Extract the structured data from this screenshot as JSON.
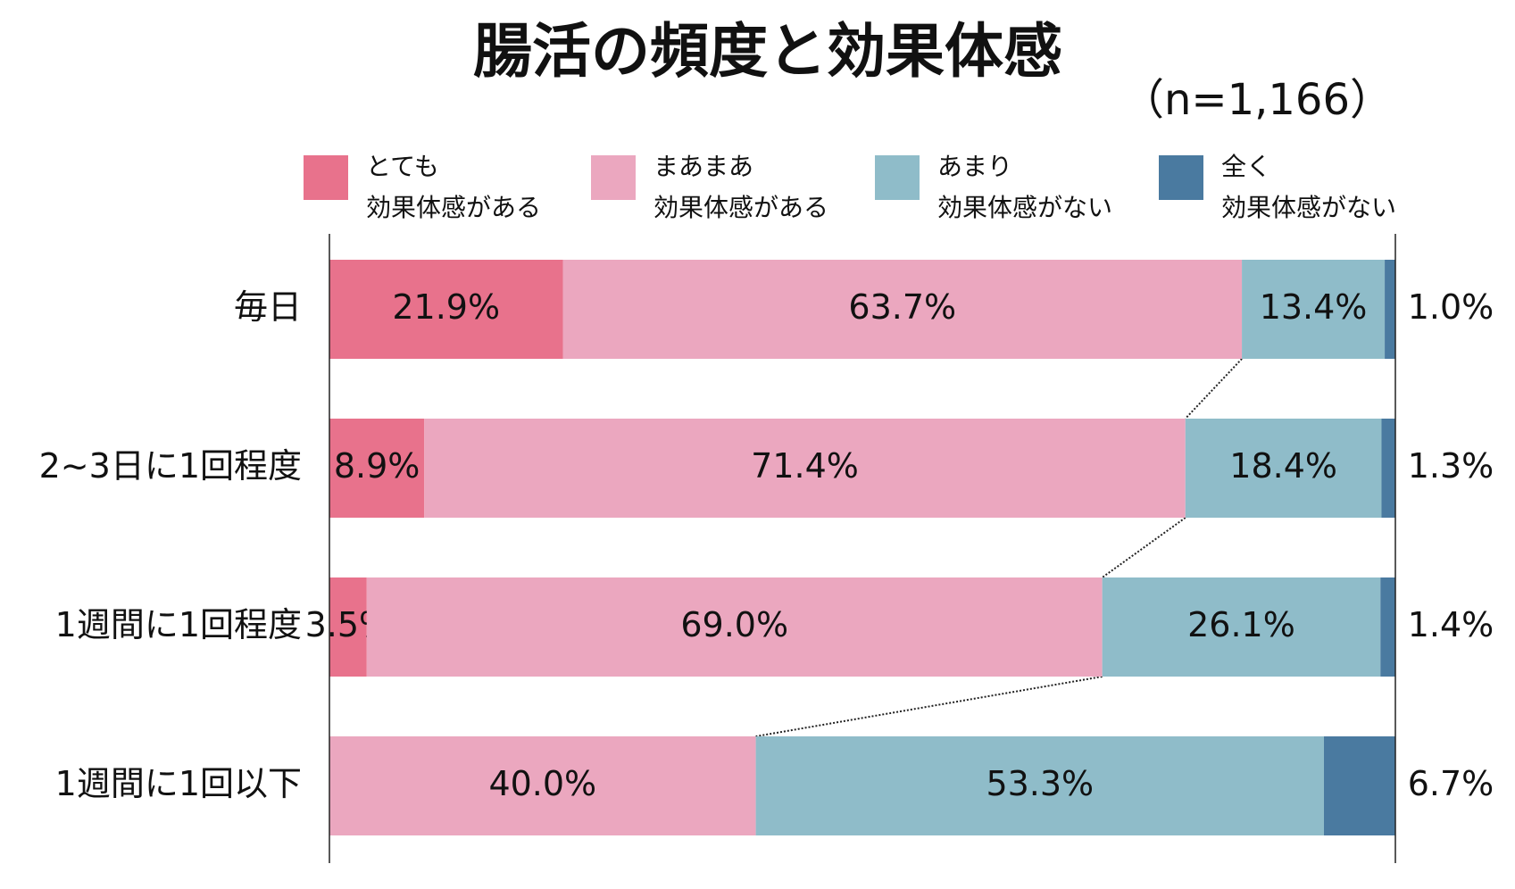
{
  "chart_data": {
    "type": "bar",
    "orientation": "horizontal",
    "stacked": true,
    "percent_stacked": true,
    "title": "腸活の頻度と効果体感",
    "subtitle": "（n=1,166）",
    "categories": [
      "毎日",
      "2~3日に1回程度",
      "1週間に1回程度",
      "1週間に1回以下"
    ],
    "series": [
      {
        "name": "とても効果体感がある",
        "legend_lines": [
          "とても",
          "効果体感がある"
        ],
        "color": "#E8728C",
        "values": [
          21.9,
          8.9,
          3.5,
          0
        ],
        "labels": [
          "21.9%",
          "8.9%",
          "3.5%",
          ""
        ]
      },
      {
        "name": "まあまあ効果体感がある",
        "legend_lines": [
          "まあまあ",
          "効果体感がある"
        ],
        "color": "#EBA7BF",
        "values": [
          63.7,
          71.4,
          69.0,
          40.0
        ],
        "labels": [
          "63.7%",
          "71.4%",
          "69.0%",
          "40.0%"
        ]
      },
      {
        "name": "あまり効果体感がない",
        "legend_lines": [
          "あまり",
          "効果体感がない"
        ],
        "color": "#8FBCC9",
        "values": [
          13.4,
          18.4,
          26.1,
          53.3
        ],
        "labels": [
          "13.4%",
          "18.4%",
          "26.1%",
          "53.3%"
        ]
      },
      {
        "name": "全く効果体感がない",
        "legend_lines": [
          "全く",
          "効果体感がない"
        ],
        "color": "#4A7AA0",
        "values": [
          1.0,
          1.3,
          1.4,
          6.7
        ],
        "labels": [
          "1.0%",
          "1.3%",
          "1.4%",
          "6.7%"
        ]
      }
    ],
    "xlim": [
      0,
      100
    ],
    "legend_position": "top",
    "outside_label_series": 3,
    "connector_lines": "dotted lines joining the boundary between series 2 and 3 across bars",
    "grid": false
  }
}
